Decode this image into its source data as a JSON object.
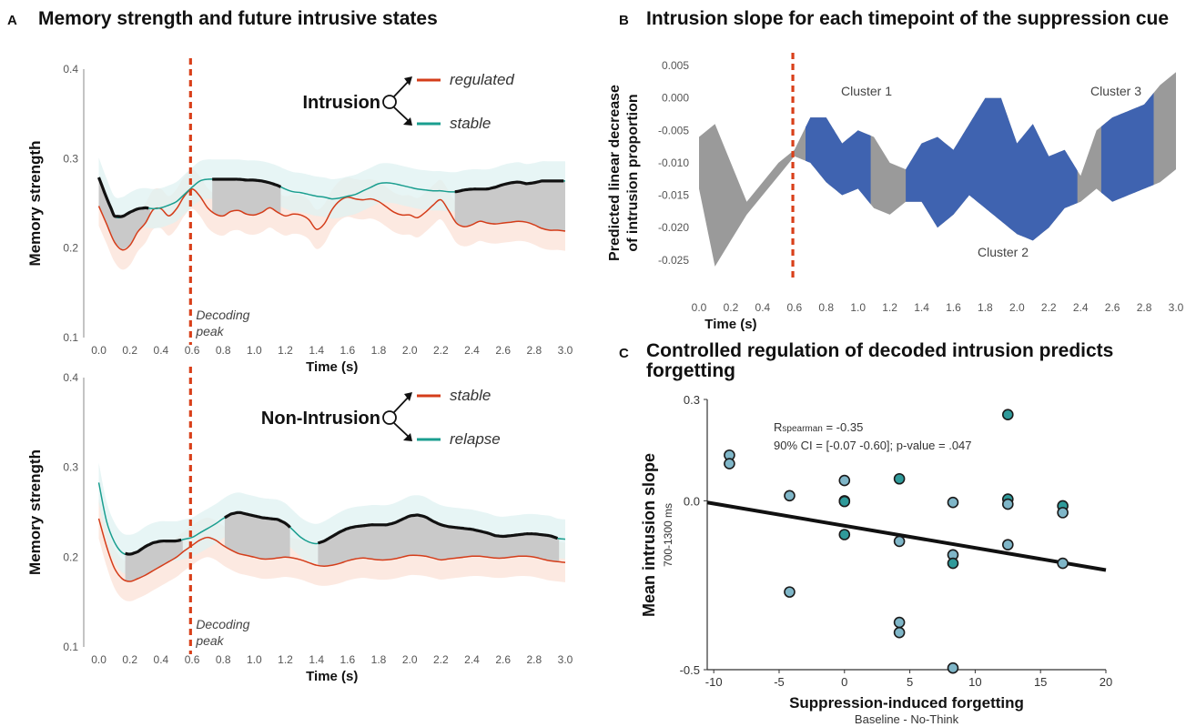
{
  "panels": {
    "a": {
      "letter": "A",
      "title": "Memory strength and future intrusive states"
    },
    "b": {
      "letter": "B",
      "title": "Intrusion slope for each timepoint of the suppression cue"
    },
    "c": {
      "letter": "C",
      "title_line1": "Controlled regulation of decoded intrusion predicts",
      "title_line2": "forgetting"
    }
  },
  "colors": {
    "red": "#d43d1a",
    "teal": "#1a9e8f",
    "black": "#111111",
    "gray": "#9a9a9a",
    "blue": "#3f63b0",
    "dot": "#7fb6c8",
    "dot_dark": "#2f9a9a",
    "decoding_line": "#d9401a"
  },
  "chart_data": [
    {
      "id": "a_top",
      "type": "line",
      "xlabel": "Time (s)",
      "ylabel": "Memory strength",
      "xlim": [
        -0.05,
        3.0
      ],
      "ylim": [
        0.1,
        0.4
      ],
      "xticks": [
        "0.0",
        "0.2",
        "0.4",
        "0.6",
        "0.8",
        "1.0",
        "1.2",
        "1.4",
        "1.6",
        "1.8",
        "2.0",
        "2.2",
        "2.4",
        "2.6",
        "2.8",
        "3.0"
      ],
      "yticks": [
        "0.1",
        "0.2",
        "0.3",
        "0.4"
      ],
      "decoding_peak": 0.59,
      "decoding_label_1": "Decoding",
      "decoding_label_2": "peak",
      "legend": {
        "root": "Intrusion",
        "top": "regulated",
        "bottom": "stable"
      },
      "x": [
        0.0,
        0.05,
        0.1,
        0.15,
        0.2,
        0.25,
        0.3,
        0.35,
        0.4,
        0.45,
        0.5,
        0.55,
        0.6,
        0.65,
        0.7,
        0.75,
        0.8,
        0.85,
        0.9,
        0.95,
        1.0,
        1.05,
        1.1,
        1.15,
        1.2,
        1.25,
        1.3,
        1.35,
        1.4,
        1.45,
        1.5,
        1.55,
        1.6,
        1.65,
        1.7,
        1.75,
        1.8,
        1.85,
        1.9,
        1.95,
        2.0,
        2.05,
        2.1,
        2.15,
        2.2,
        2.25,
        2.3,
        2.35,
        2.4,
        2.45,
        2.5,
        2.55,
        2.6,
        2.65,
        2.7,
        2.75,
        2.8,
        2.85,
        2.9,
        2.95,
        3.0
      ],
      "series": [
        {
          "name": "regulated",
          "color_key": "red",
          "values": [
            0.247,
            0.227,
            0.207,
            0.198,
            0.203,
            0.218,
            0.228,
            0.243,
            0.244,
            0.236,
            0.244,
            0.258,
            0.266,
            0.258,
            0.245,
            0.238,
            0.236,
            0.241,
            0.242,
            0.238,
            0.237,
            0.24,
            0.245,
            0.24,
            0.236,
            0.238,
            0.237,
            0.232,
            0.221,
            0.227,
            0.243,
            0.253,
            0.257,
            0.255,
            0.254,
            0.255,
            0.252,
            0.246,
            0.24,
            0.237,
            0.237,
            0.234,
            0.24,
            0.248,
            0.254,
            0.242,
            0.228,
            0.224,
            0.226,
            0.23,
            0.228,
            0.227,
            0.228,
            0.229,
            0.23,
            0.229,
            0.226,
            0.222,
            0.22,
            0.22,
            0.219
          ]
        },
        {
          "name": "stable",
          "color_key": "teal",
          "values": [
            0.279,
            0.256,
            0.236,
            0.235,
            0.24,
            0.244,
            0.245,
            0.244,
            0.245,
            0.248,
            0.252,
            0.26,
            0.268,
            0.275,
            0.277,
            0.277,
            0.277,
            0.277,
            0.277,
            0.276,
            0.276,
            0.275,
            0.273,
            0.27,
            0.266,
            0.263,
            0.262,
            0.26,
            0.258,
            0.257,
            0.255,
            0.256,
            0.258,
            0.26,
            0.264,
            0.268,
            0.272,
            0.273,
            0.272,
            0.27,
            0.268,
            0.266,
            0.265,
            0.264,
            0.264,
            0.263,
            0.263,
            0.265,
            0.266,
            0.266,
            0.266,
            0.268,
            0.271,
            0.273,
            0.274,
            0.272,
            0.273,
            0.275,
            0.275,
            0.275,
            0.275
          ]
        }
      ],
      "highlight_ranges": [
        [
          0.0,
          0.33
        ],
        [
          0.73,
          1.17
        ],
        [
          2.29,
          3.0
        ]
      ]
    },
    {
      "id": "a_bottom",
      "type": "line",
      "xlabel": "Time (s)",
      "ylabel": "Memory strength",
      "xlim": [
        -0.05,
        3.0
      ],
      "ylim": [
        0.1,
        0.4
      ],
      "xticks": [
        "0.0",
        "0.2",
        "0.4",
        "0.6",
        "0.8",
        "1.0",
        "1.2",
        "1.4",
        "1.6",
        "1.8",
        "2.0",
        "2.2",
        "2.4",
        "2.6",
        "2.8",
        "3.0"
      ],
      "yticks": [
        "0.1",
        "0.2",
        "0.3",
        "0.4"
      ],
      "decoding_peak": 0.59,
      "decoding_label_1": "Decoding",
      "decoding_label_2": "peak",
      "legend": {
        "root": "Non-Intrusion",
        "top": "stable",
        "bottom": "relapse"
      },
      "x": [
        0.0,
        0.05,
        0.1,
        0.15,
        0.2,
        0.25,
        0.3,
        0.35,
        0.4,
        0.45,
        0.5,
        0.55,
        0.6,
        0.65,
        0.7,
        0.75,
        0.8,
        0.85,
        0.9,
        0.95,
        1.0,
        1.05,
        1.1,
        1.15,
        1.2,
        1.25,
        1.3,
        1.35,
        1.4,
        1.45,
        1.5,
        1.55,
        1.6,
        1.65,
        1.7,
        1.75,
        1.8,
        1.85,
        1.9,
        1.95,
        2.0,
        2.05,
        2.1,
        2.15,
        2.2,
        2.25,
        2.3,
        2.35,
        2.4,
        2.45,
        2.5,
        2.55,
        2.6,
        2.65,
        2.7,
        2.75,
        2.8,
        2.85,
        2.9,
        2.95,
        3.0
      ],
      "series": [
        {
          "name": "stable",
          "color_key": "red",
          "values": [
            0.243,
            0.212,
            0.188,
            0.176,
            0.173,
            0.176,
            0.18,
            0.185,
            0.19,
            0.195,
            0.2,
            0.207,
            0.213,
            0.219,
            0.222,
            0.219,
            0.213,
            0.208,
            0.204,
            0.202,
            0.2,
            0.198,
            0.198,
            0.199,
            0.2,
            0.199,
            0.197,
            0.194,
            0.191,
            0.19,
            0.191,
            0.193,
            0.196,
            0.198,
            0.199,
            0.198,
            0.197,
            0.197,
            0.198,
            0.2,
            0.202,
            0.202,
            0.201,
            0.199,
            0.197,
            0.198,
            0.199,
            0.2,
            0.201,
            0.201,
            0.2,
            0.199,
            0.199,
            0.2,
            0.201,
            0.201,
            0.2,
            0.198,
            0.196,
            0.195,
            0.194
          ]
        },
        {
          "name": "relapse",
          "color_key": "teal",
          "values": [
            0.283,
            0.24,
            0.217,
            0.205,
            0.203,
            0.206,
            0.212,
            0.216,
            0.218,
            0.218,
            0.218,
            0.22,
            0.222,
            0.227,
            0.232,
            0.237,
            0.243,
            0.248,
            0.25,
            0.248,
            0.246,
            0.244,
            0.243,
            0.242,
            0.238,
            0.23,
            0.222,
            0.217,
            0.215,
            0.218,
            0.223,
            0.228,
            0.232,
            0.234,
            0.235,
            0.236,
            0.236,
            0.236,
            0.238,
            0.242,
            0.246,
            0.247,
            0.245,
            0.24,
            0.236,
            0.234,
            0.233,
            0.232,
            0.231,
            0.229,
            0.227,
            0.224,
            0.223,
            0.224,
            0.225,
            0.226,
            0.226,
            0.225,
            0.224,
            0.221,
            0.22
          ]
        }
      ],
      "highlight_ranges": [
        [
          0.17,
          0.54
        ],
        [
          0.81,
          1.23
        ],
        [
          1.41,
          2.96
        ]
      ]
    },
    {
      "id": "b",
      "type": "area",
      "xlabel": "Time (s)",
      "ylabel_line1": "Predicted linear decrease",
      "ylabel_line2": "of intrusion proportion",
      "xlim": [
        0.0,
        3.0
      ],
      "ylim": [
        -0.027,
        0.006
      ],
      "xticks": [
        "0.0",
        "0.2",
        "0.4",
        "0.6",
        "0.8",
        "1.0",
        "1.2",
        "1.4",
        "1.6",
        "1.8",
        "2.0",
        "2.2",
        "2.4",
        "2.6",
        "2.8",
        "3.0"
      ],
      "yticks": [
        "0.005",
        "0.000",
        "-0.005",
        "-0.010",
        "-0.015",
        "-0.020",
        "-0.025"
      ],
      "decoding_peak": 0.59,
      "x": [
        0.0,
        0.1,
        0.2,
        0.3,
        0.4,
        0.5,
        0.6,
        0.7,
        0.8,
        0.9,
        1.0,
        1.1,
        1.2,
        1.3,
        1.4,
        1.5,
        1.6,
        1.7,
        1.8,
        1.9,
        2.0,
        2.1,
        2.2,
        2.3,
        2.4,
        2.5,
        2.6,
        2.7,
        2.8,
        2.9,
        3.0
      ],
      "upper": [
        -0.006,
        -0.004,
        -0.01,
        -0.016,
        -0.013,
        -0.01,
        -0.008,
        -0.003,
        -0.003,
        -0.007,
        -0.005,
        -0.006,
        -0.01,
        -0.011,
        -0.007,
        -0.006,
        -0.008,
        -0.004,
        0.0,
        0.0,
        -0.007,
        -0.004,
        -0.009,
        -0.008,
        -0.012,
        -0.005,
        -0.003,
        -0.002,
        -0.001,
        0.002,
        0.004
      ],
      "lower": [
        -0.014,
        -0.026,
        -0.022,
        -0.018,
        -0.015,
        -0.012,
        -0.009,
        -0.01,
        -0.013,
        -0.015,
        -0.014,
        -0.017,
        -0.018,
        -0.016,
        -0.016,
        -0.02,
        -0.018,
        -0.015,
        -0.017,
        -0.019,
        -0.021,
        -0.022,
        -0.02,
        -0.017,
        -0.016,
        -0.014,
        -0.016,
        -0.015,
        -0.014,
        -0.013,
        -0.011
      ],
      "clusters": [
        {
          "label": "Cluster 1",
          "range": [
            0.67,
            1.08
          ]
        },
        {
          "label": "Cluster 2",
          "range": [
            1.3,
            2.38
          ]
        },
        {
          "label": "Cluster 3",
          "range": [
            2.53,
            2.86
          ]
        }
      ]
    },
    {
      "id": "c",
      "type": "scatter",
      "xlabel": "Suppression-induced forgetting",
      "xsublabel": "Baseline - No-Think",
      "ylabel": "Mean intrusion slope",
      "ysublabel": "700-1300 ms",
      "xlim": [
        -10.5,
        20
      ],
      "ylim": [
        -0.5,
        0.3
      ],
      "xticks": [
        "-10",
        "-5",
        "0",
        "5",
        "10",
        "15",
        "20"
      ],
      "xtick_values": [
        -10,
        -5,
        0,
        5,
        10,
        15,
        20
      ],
      "yticks": [
        "0.3",
        "0.0",
        "-0.5"
      ],
      "ytick_values": [
        0.3,
        0.0,
        -0.5
      ],
      "annotation_r_sub": "spearman",
      "annotation_r_prefix": "R",
      "annotation_r_value": " = -0.35",
      "annotation_ci": "90% CI = [-0.07 -0.60]; p-value = .047",
      "regression": {
        "x": [
          -10.5,
          20
        ],
        "y": [
          -0.005,
          -0.205
        ]
      },
      "points": [
        {
          "x": -8.8,
          "y": 0.135,
          "c": "light"
        },
        {
          "x": -8.8,
          "y": 0.11,
          "c": "light"
        },
        {
          "x": -4.2,
          "y": 0.015,
          "c": "light"
        },
        {
          "x": -4.2,
          "y": -0.27,
          "c": "light"
        },
        {
          "x": 0.0,
          "y": 0.06,
          "c": "light"
        },
        {
          "x": 0.0,
          "y": 0.0,
          "c": "light"
        },
        {
          "x": 0.0,
          "y": -0.002,
          "c": "dark"
        },
        {
          "x": 0.0,
          "y": -0.1,
          "c": "dark"
        },
        {
          "x": 4.2,
          "y": 0.065,
          "c": "dark"
        },
        {
          "x": 4.2,
          "y": -0.12,
          "c": "light"
        },
        {
          "x": 4.2,
          "y": -0.36,
          "c": "light"
        },
        {
          "x": 4.2,
          "y": -0.39,
          "c": "light"
        },
        {
          "x": 8.3,
          "y": -0.005,
          "c": "light"
        },
        {
          "x": 8.3,
          "y": -0.16,
          "c": "light"
        },
        {
          "x": 8.3,
          "y": -0.185,
          "c": "dark"
        },
        {
          "x": 8.3,
          "y": -0.495,
          "c": "light"
        },
        {
          "x": 12.5,
          "y": 0.255,
          "c": "dark"
        },
        {
          "x": 12.5,
          "y": 0.005,
          "c": "dark"
        },
        {
          "x": 12.5,
          "y": -0.01,
          "c": "light"
        },
        {
          "x": 12.5,
          "y": -0.13,
          "c": "light"
        },
        {
          "x": 16.7,
          "y": -0.015,
          "c": "dark"
        },
        {
          "x": 16.7,
          "y": -0.035,
          "c": "light"
        },
        {
          "x": 16.7,
          "y": -0.185,
          "c": "light"
        }
      ]
    }
  ]
}
